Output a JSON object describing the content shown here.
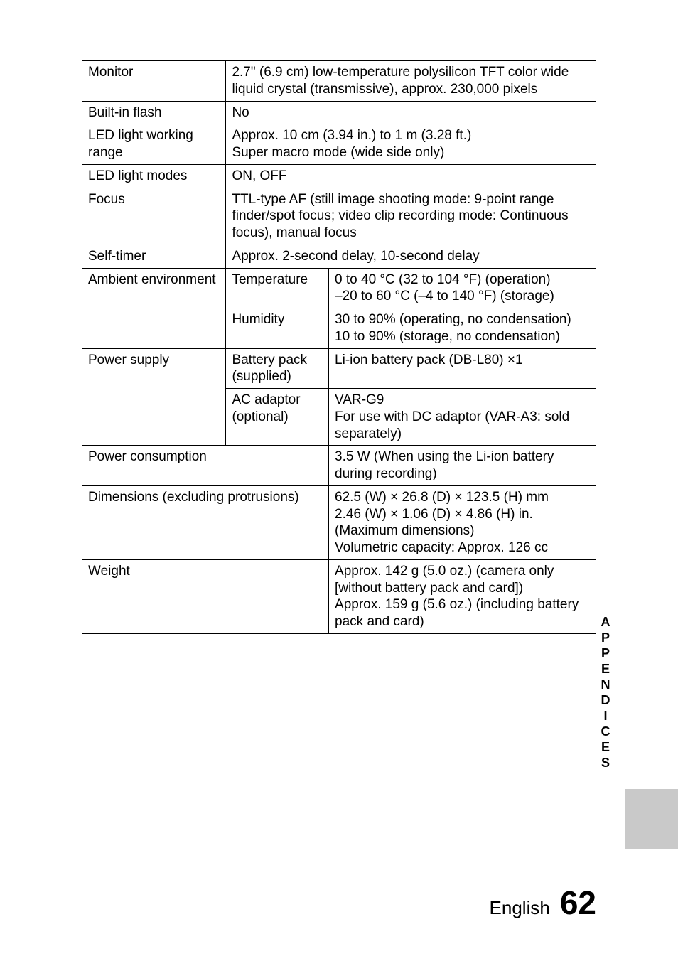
{
  "rows": {
    "monitor": {
      "label": "Monitor",
      "value": "2.7\" (6.9 cm) low-temperature polysilicon TFT color wide liquid crystal (transmissive), approx. 230,000 pixels"
    },
    "flash": {
      "label": "Built-in flash",
      "value": "No"
    },
    "ledRange": {
      "label": "LED light working range",
      "value": "Approx. 10 cm (3.94 in.) to 1 m (3.28 ft.)\nSuper macro mode (wide side only)"
    },
    "ledModes": {
      "label": "LED light modes",
      "value": "ON, OFF"
    },
    "focus": {
      "label": "Focus",
      "value": "TTL-type AF (still image shooting mode: 9-point range finder/spot focus; video clip recording mode: Continuous focus), manual focus"
    },
    "selfTimer": {
      "label": "Self-timer",
      "value": "Approx. 2-second delay, 10-second delay"
    },
    "ambient": {
      "label": "Ambient environment",
      "temp": {
        "label": "Temperature",
        "value": "0 to 40 °C (32 to 104 °F) (operation)\n–20 to 60 °C (–4 to 140 °F) (storage)"
      },
      "humidity": {
        "label": "Humidity",
        "value": "30 to 90% (operating, no condensation)\n10 to 90% (storage, no condensation)"
      }
    },
    "power": {
      "label": "Power supply",
      "battery": {
        "label": "Battery pack (supplied)",
        "value": "Li-ion battery pack (DB-L80) ×1"
      },
      "ac": {
        "label": "AC adaptor (optional)",
        "value": "VAR-G9\nFor use with DC adaptor (VAR-A3: sold separately)"
      }
    },
    "consumption": {
      "label": "Power consumption",
      "value": "3.5 W (When using the Li-ion battery during recording)"
    },
    "dimensions": {
      "label": "Dimensions (excluding protrusions)",
      "value": "62.5 (W) × 26.8 (D) × 123.5 (H) mm\n2.46 (W) × 1.06 (D) × 4.86 (H) in.\n(Maximum dimensions)\nVolumetric capacity: Approx. 126 cc"
    },
    "weight": {
      "label": "Weight",
      "value": "Approx. 142 g (5.0 oz.) (camera only [without battery pack and card])\nApprox. 159 g (5.6 oz.) (including battery pack and card)"
    }
  },
  "sideLabel": "APPENDICES",
  "footer": {
    "text": "English",
    "page": "62"
  },
  "layout": {
    "col1Width": "28%",
    "col2Width": "20%"
  }
}
